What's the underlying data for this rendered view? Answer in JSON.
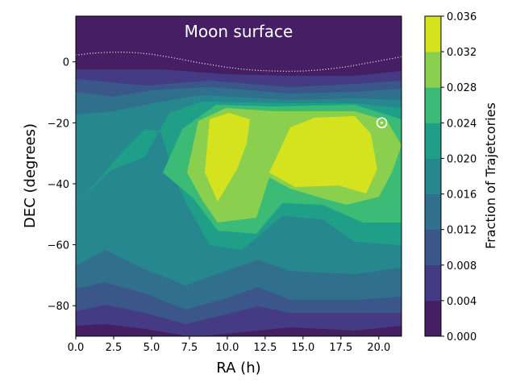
{
  "chart_data": {
    "type": "contour",
    "title": "Moon surface",
    "xlabel": "RA (h)",
    "ylabel": "DEC (degrees)",
    "colorbar_label": "Fraction of Trajetcories",
    "xlim": [
      0,
      21.5
    ],
    "ylim": [
      -90,
      15
    ],
    "xticks": [
      "0.0",
      "2.5",
      "5.0",
      "7.5",
      "10.0",
      "12.5",
      "15.0",
      "17.5",
      "20.0"
    ],
    "yticks": [
      "0",
      "−20",
      "−40",
      "−60",
      "−80"
    ],
    "levels": [
      0.0,
      0.004,
      0.008,
      0.012,
      0.016,
      0.02,
      0.024,
      0.028,
      0.032,
      0.036
    ],
    "level_labels": [
      "0.000",
      "0.004",
      "0.008",
      "0.012",
      "0.016",
      "0.020",
      "0.024",
      "0.028",
      "0.032",
      "0.036"
    ],
    "colors": [
      "#461e63",
      "#443b84",
      "#3b578a",
      "#31708d",
      "#26878e",
      "#1f9f88",
      "#3bbb75",
      "#8bcf4f",
      "#d5e21e"
    ],
    "colormap": "viridis",
    "max_region_centers": [
      {
        "ra": 10.3,
        "dec": -28
      },
      {
        "ra": 16.5,
        "dec": -28
      }
    ],
    "marker": {
      "symbol": "sun-circle-dot",
      "ra": 20.2,
      "dec": -20
    },
    "ecliptic_line": {
      "ra": [
        0,
        1,
        2,
        3,
        4,
        5,
        6,
        7,
        8,
        9,
        10,
        11,
        12,
        13,
        14,
        15,
        16,
        17,
        18,
        19,
        20,
        21,
        21.5
      ],
      "dec": [
        2.2,
        2.8,
        3.1,
        3.2,
        3.0,
        2.5,
        1.7,
        0.8,
        -0.2,
        -1.0,
        -1.8,
        -2.4,
        -2.8,
        -3.0,
        -3.1,
        -3.0,
        -2.7,
        -2.2,
        -1.5,
        -0.6,
        0.3,
        1.2,
        1.7
      ]
    }
  }
}
